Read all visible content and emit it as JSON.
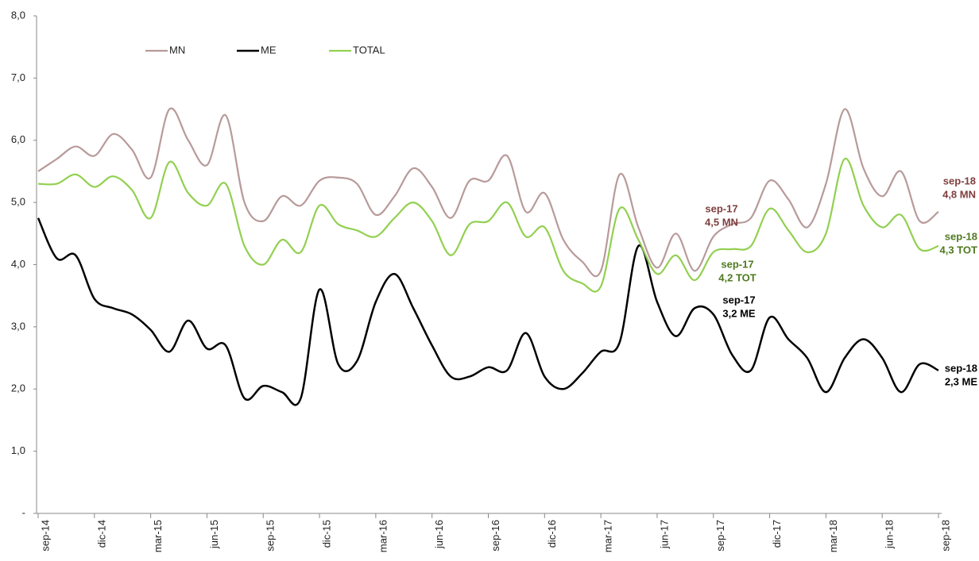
{
  "chart_data": {
    "type": "line",
    "categories": [
      "sep-14",
      null,
      null,
      "dic-14",
      null,
      null,
      "mar-15",
      null,
      null,
      "jun-15",
      null,
      null,
      "sep-15",
      null,
      null,
      "dic-15",
      null,
      null,
      "mar-16",
      null,
      null,
      "jun-16",
      null,
      null,
      "sep-16",
      null,
      null,
      "dic-16",
      null,
      null,
      "mar-17",
      null,
      null,
      "jun-17",
      null,
      null,
      "sep-17",
      null,
      null,
      "dic-17",
      null,
      null,
      "mar-18",
      null,
      null,
      "jun-18",
      null,
      null,
      "sep-18"
    ],
    "series": [
      {
        "name": "MN",
        "color": "#b89a9a",
        "values": [
          5.5,
          5.7,
          5.9,
          5.75,
          6.1,
          5.85,
          5.4,
          6.5,
          6.0,
          5.6,
          6.4,
          5.0,
          4.7,
          5.1,
          4.95,
          5.35,
          5.4,
          5.3,
          4.8,
          5.1,
          5.55,
          5.25,
          4.75,
          5.35,
          5.35,
          5.75,
          4.85,
          5.15,
          4.4,
          4.05,
          3.9,
          5.45,
          4.6,
          3.95,
          4.5,
          3.9,
          4.45,
          4.65,
          4.75,
          5.35,
          5.05,
          4.6,
          5.3,
          6.5,
          5.55,
          5.1,
          5.5,
          4.7,
          4.85
        ]
      },
      {
        "name": "ME",
        "color": "#000000",
        "values": [
          4.75,
          4.1,
          4.15,
          3.45,
          3.3,
          3.2,
          2.95,
          2.6,
          3.1,
          2.65,
          2.7,
          1.85,
          2.05,
          1.95,
          1.85,
          3.6,
          2.4,
          2.45,
          3.4,
          3.85,
          3.3,
          2.7,
          2.2,
          2.2,
          2.35,
          2.3,
          2.9,
          2.2,
          2.0,
          2.25,
          2.6,
          2.75,
          4.3,
          3.4,
          2.85,
          3.3,
          3.2,
          2.55,
          2.3,
          3.15,
          2.8,
          2.5,
          1.95,
          2.5,
          2.8,
          2.5,
          1.95,
          2.4,
          2.3
        ]
      },
      {
        "name": "TOTAL",
        "color": "#92d050",
        "values": [
          5.3,
          5.3,
          5.45,
          5.25,
          5.42,
          5.2,
          4.75,
          5.65,
          5.15,
          4.95,
          5.3,
          4.3,
          4.0,
          4.4,
          4.2,
          4.95,
          4.65,
          4.55,
          4.45,
          4.75,
          5.0,
          4.7,
          4.15,
          4.65,
          4.7,
          5.0,
          4.45,
          4.6,
          3.9,
          3.7,
          3.65,
          4.9,
          4.4,
          3.85,
          4.15,
          3.75,
          4.2,
          4.25,
          4.3,
          4.9,
          4.55,
          4.2,
          4.5,
          5.7,
          4.95,
          4.6,
          4.8,
          4.25,
          4.3
        ]
      }
    ],
    "annotations": [
      {
        "lines": [
          "sep-17",
          "4,5 MN"
        ],
        "color": "#7f3f3f"
      },
      {
        "lines": [
          "sep-17",
          "4,2 TOT"
        ],
        "color": "#4f7a1f"
      },
      {
        "lines": [
          "sep-17",
          "3,2 ME"
        ],
        "color": "#000000"
      },
      {
        "lines": [
          "sep-18",
          "4,8 MN"
        ],
        "color": "#7f3f3f"
      },
      {
        "lines": [
          "sep-18",
          "4,3 TOT"
        ],
        "color": "#4f7a1f"
      },
      {
        "lines": [
          "sep-18",
          "2,3 ME"
        ],
        "color": "#000000"
      }
    ],
    "ylim": [
      0,
      8
    ],
    "yticks": [
      {
        "value": 0,
        "label": "-"
      },
      {
        "value": 1,
        "label": "1,0"
      },
      {
        "value": 2,
        "label": "2,0"
      },
      {
        "value": 3,
        "label": "3,0"
      },
      {
        "value": 4,
        "label": "4,0"
      },
      {
        "value": 5,
        "label": "5,0"
      },
      {
        "value": 6,
        "label": "6,0"
      },
      {
        "value": 7,
        "label": "7,0"
      },
      {
        "value": 8,
        "label": "8,0"
      }
    ],
    "grid": false
  }
}
